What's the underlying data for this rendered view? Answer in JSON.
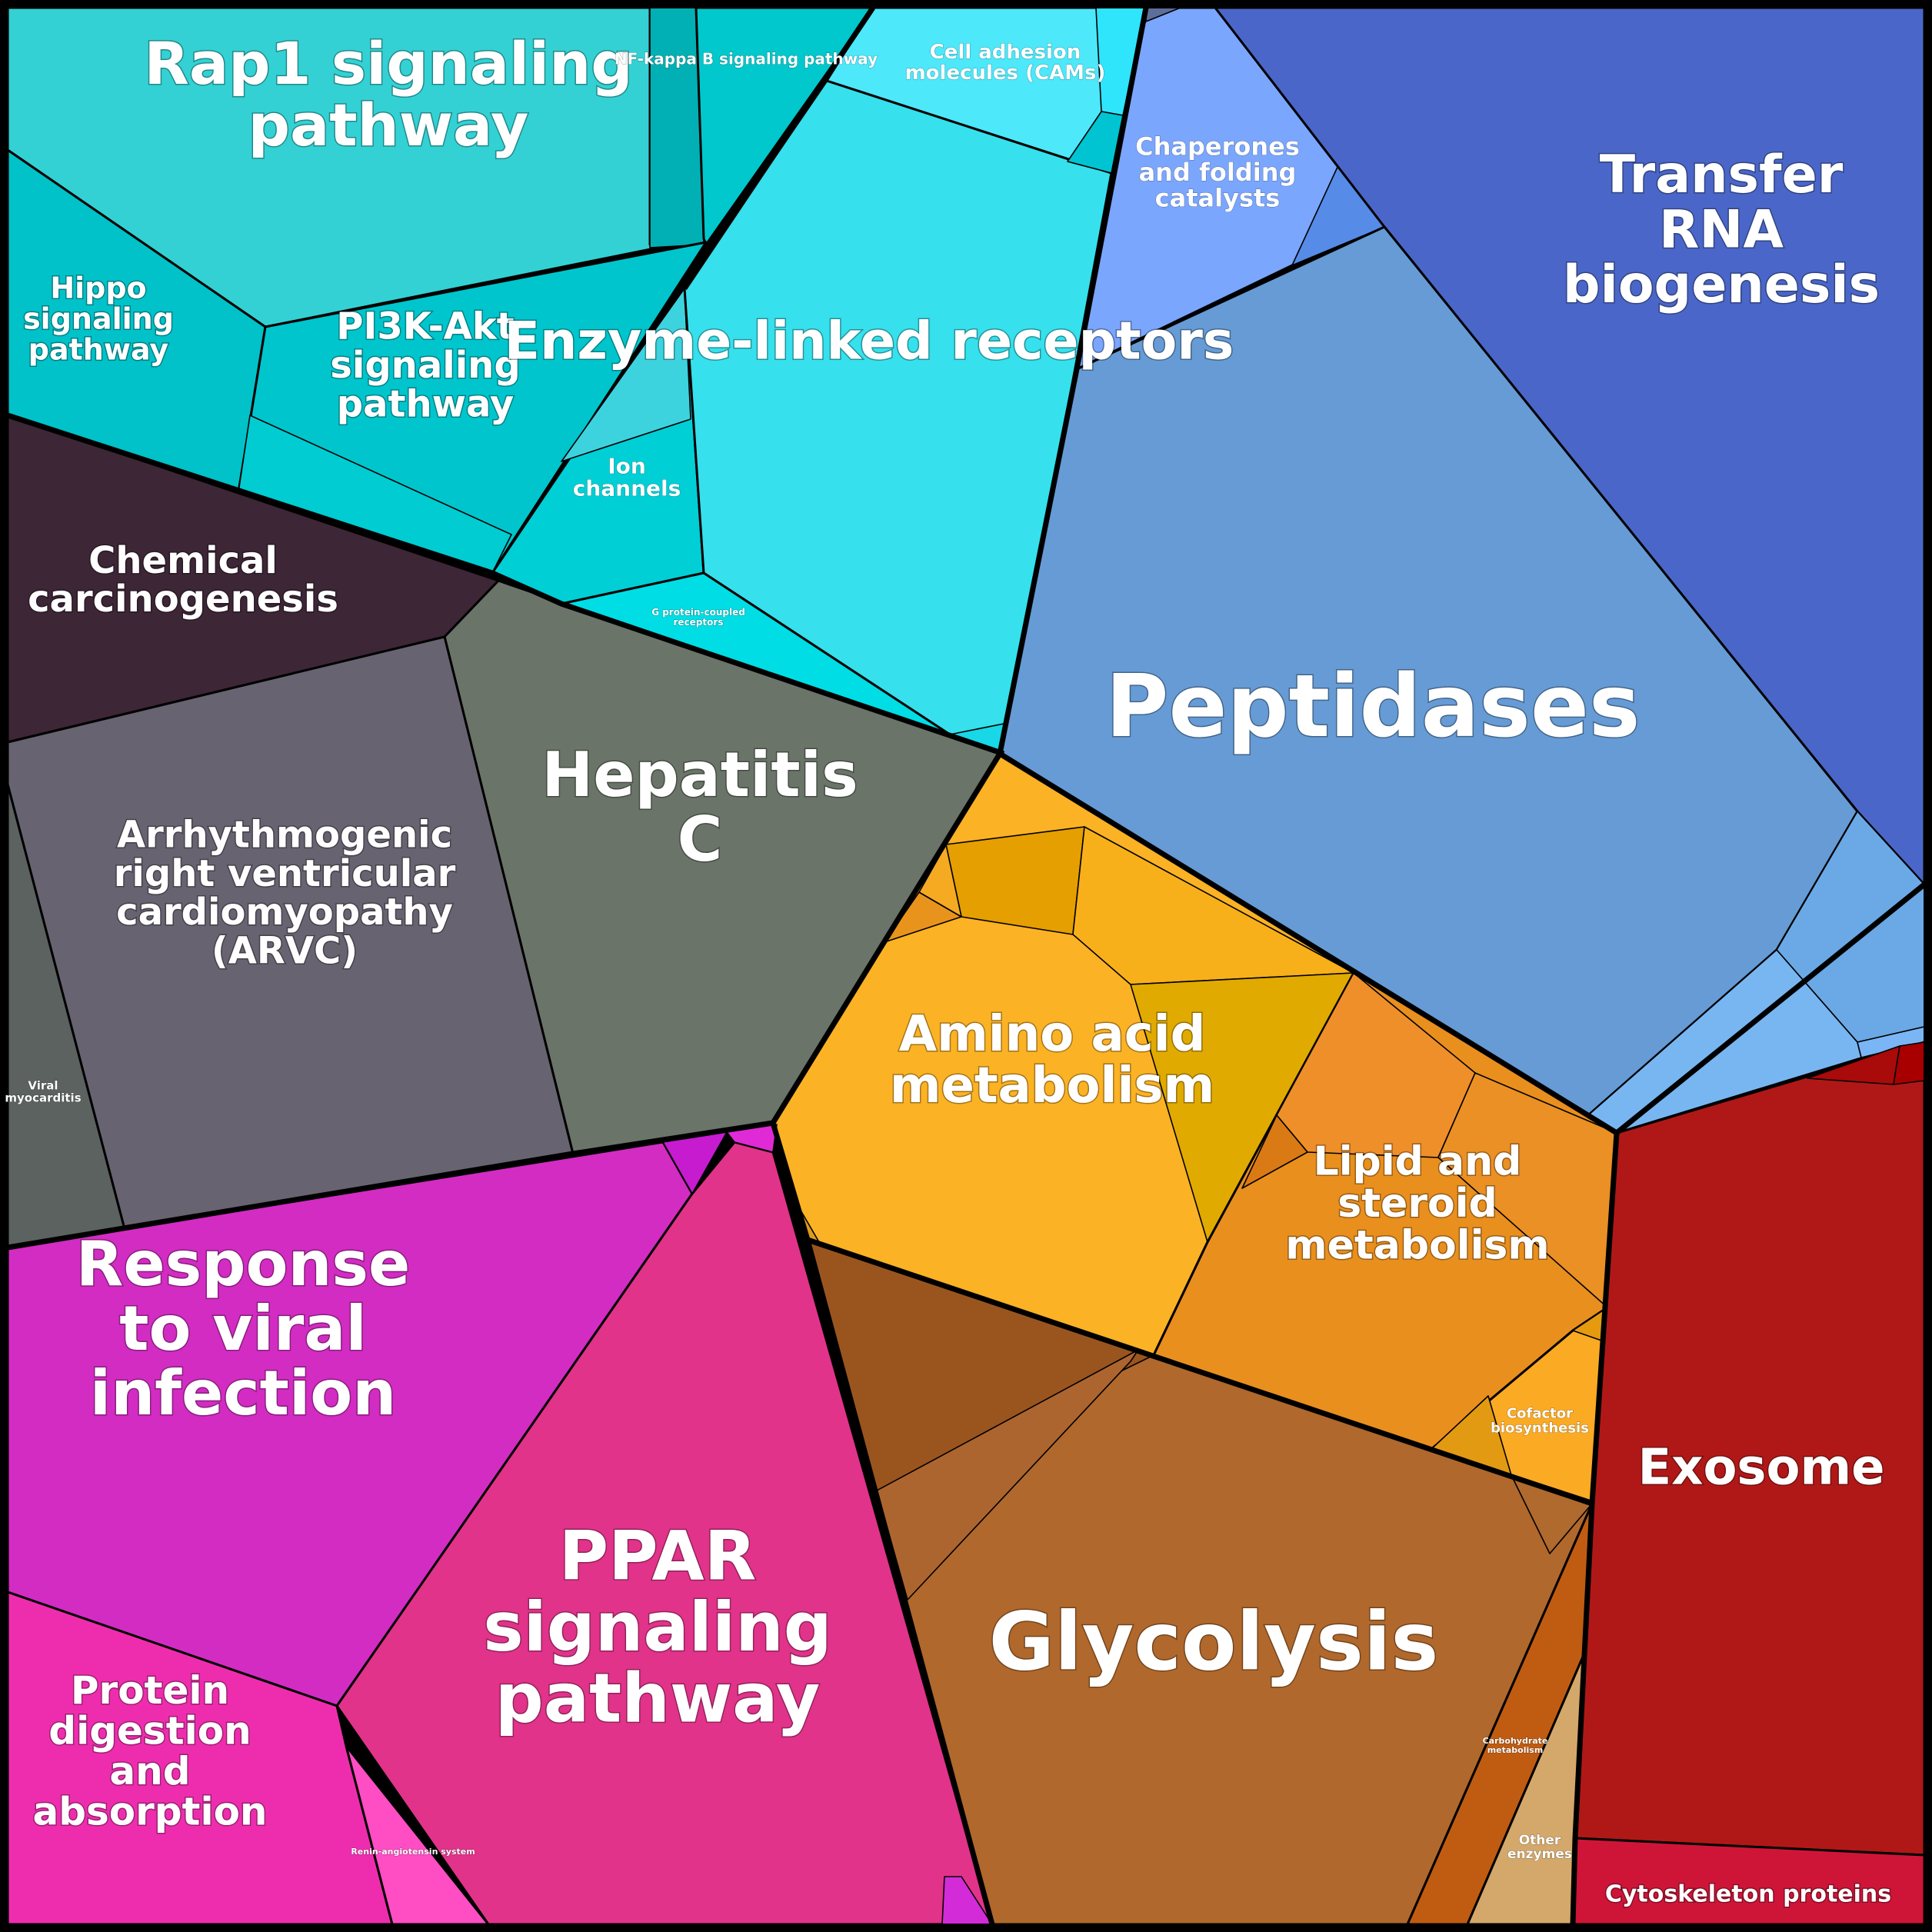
{
  "diagram": {
    "type": "voronoi-treemap",
    "groups": {
      "signaling": {
        "color": "#22c8d0"
      },
      "disease": {
        "color": "#5c6160"
      },
      "peptidases_group": {
        "color": "#5b8fd0"
      },
      "metabolism": {
        "color": "#f2a31e"
      },
      "carbohydrate": {
        "color": "#b06728"
      },
      "viral_ppar": {
        "color": "#d22ca8"
      },
      "exosome_group": {
        "color": "#b01818"
      }
    },
    "labels": {
      "rap1": "Rap1 signaling pathway",
      "nfkb": "NF-kappa B signaling pathway",
      "cams": "Cell adhesion molecules (CAMs)",
      "hippo": "Hippo signaling pathway",
      "pi3k": "PI3K-Akt signaling pathway",
      "ion": "Ion channels",
      "enzyme_linked": "Enzyme-linked receptors",
      "gpcr": "G protein-coupled receptors",
      "chaperones": "Chaperones and folding catalysts",
      "trna": "Transfer RNA biogenesis",
      "peptidases": "Peptidases",
      "chemcarc": "Chemical carcinogenesis",
      "hepc": "Hepatitis C",
      "arvc": "Arrhythmogenic right ventricular cardiomyopathy (ARVC)",
      "viralmyo": "Viral myocarditis",
      "aminoacid": "Amino acid metabolism",
      "lipid": "Lipid and steroid metabolism",
      "cofactor": "Cofactor biosynthesis",
      "exosome": "Exosome",
      "response_viral": "Response to viral infection",
      "ppar": "PPAR signaling pathway",
      "protein_digestion": "Protein digestion and absorption",
      "renin": "Renin-angiotensin system",
      "glycolysis": "Glycolysis",
      "carb_metab": "Carbohydrate metabolism",
      "other_enzymes": "Other enzymes",
      "cytoskeleton": "Cytoskeleton proteins"
    }
  }
}
